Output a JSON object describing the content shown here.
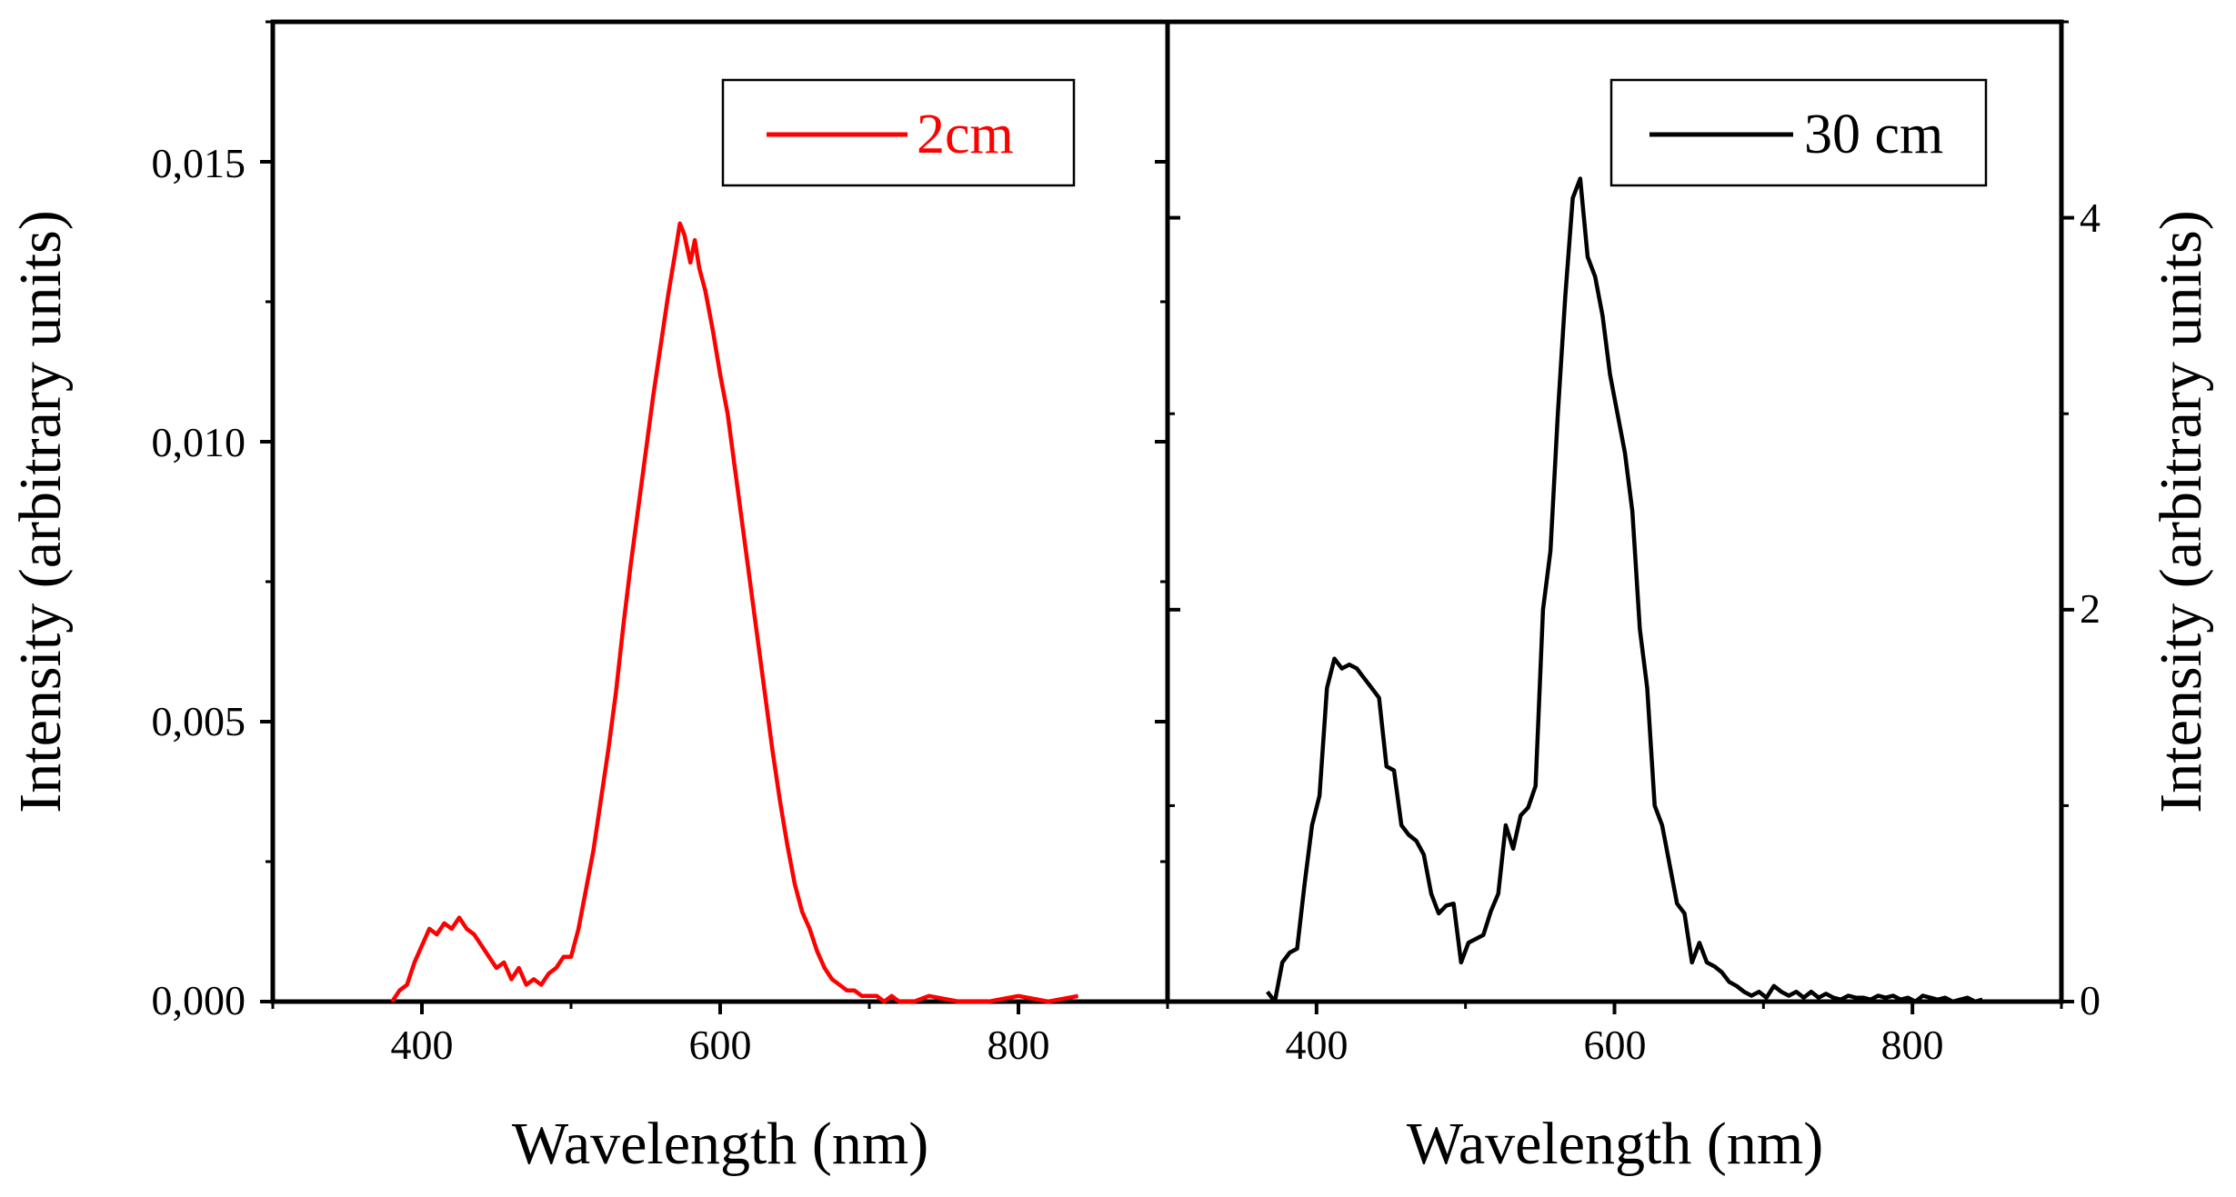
{
  "figure": {
    "left_panel": {
      "xlabel": "Wavelength (nm)",
      "ylabel": "Intensity (arbitrary units)",
      "x_tick_labels": [
        "400",
        "600",
        "800"
      ],
      "y_tick_labels": [
        "0,000",
        "0,005",
        "0,010",
        "0,015"
      ],
      "legend_label": "2cm",
      "line_color": "#ff0000"
    },
    "right_panel": {
      "xlabel": "Wavelength (nm)",
      "ylabel": "Intensity (arbitrary units)",
      "x_tick_labels": [
        "400",
        "600",
        "800"
      ],
      "y_tick_labels": [
        "0",
        "2",
        "4"
      ],
      "legend_label": "30 cm",
      "line_color": "#000000"
    }
  },
  "chart_data": [
    {
      "type": "line",
      "title": "",
      "xlabel": "Wavelength (nm)",
      "ylabel": "Intensity (arbitrary units)",
      "xlim": [
        300,
        900
      ],
      "ylim": [
        0,
        0.0175
      ],
      "xticks": [
        400,
        600,
        800
      ],
      "yticks": [
        0.0,
        0.005,
        0.01,
        0.015
      ],
      "ytick_labels": [
        "0,000",
        "0,005",
        "0,010",
        "0,015"
      ],
      "legend_position": "top-right",
      "grid": false,
      "series": [
        {
          "name": "2cm",
          "color": "#ff0000",
          "x": [
            380,
            385,
            390,
            395,
            400,
            405,
            410,
            415,
            420,
            425,
            430,
            435,
            440,
            445,
            450,
            455,
            460,
            465,
            470,
            475,
            480,
            485,
            490,
            495,
            500,
            505,
            510,
            515,
            520,
            525,
            530,
            535,
            540,
            545,
            550,
            555,
            560,
            565,
            570,
            573,
            576,
            580,
            583,
            586,
            590,
            595,
            600,
            605,
            610,
            615,
            620,
            625,
            630,
            635,
            640,
            645,
            650,
            655,
            660,
            665,
            670,
            675,
            680,
            685,
            690,
            695,
            700,
            705,
            710,
            715,
            720,
            730,
            740,
            760,
            780,
            800,
            820,
            840
          ],
          "values": [
            0.0,
            0.0002,
            0.0003,
            0.0007,
            0.001,
            0.0013,
            0.0012,
            0.0014,
            0.0013,
            0.0015,
            0.0013,
            0.0012,
            0.001,
            0.0008,
            0.0006,
            0.0007,
            0.0004,
            0.0006,
            0.0003,
            0.0004,
            0.0003,
            0.0005,
            0.0006,
            0.0008,
            0.0008,
            0.0013,
            0.002,
            0.0027,
            0.0036,
            0.0045,
            0.0055,
            0.0067,
            0.0078,
            0.0088,
            0.0098,
            0.0108,
            0.0117,
            0.0126,
            0.0134,
            0.0139,
            0.0137,
            0.0132,
            0.0136,
            0.0131,
            0.0127,
            0.012,
            0.0112,
            0.0105,
            0.0095,
            0.0085,
            0.0075,
            0.0065,
            0.0055,
            0.0045,
            0.0036,
            0.0028,
            0.0021,
            0.0016,
            0.0013,
            0.0009,
            0.0006,
            0.0004,
            0.0003,
            0.0002,
            0.0002,
            0.0001,
            0.0001,
            0.0001,
            0.0,
            0.0001,
            0.0,
            0.0,
            0.0001,
            0.0,
            0.0,
            0.0001,
            0.0,
            0.0001
          ]
        }
      ]
    },
    {
      "type": "line",
      "title": "",
      "xlabel": "Wavelength (nm)",
      "ylabel": "Intensity (arbitrary units)",
      "xlim": [
        300,
        900
      ],
      "ylim": [
        0,
        5.0
      ],
      "xticks": [
        400,
        600,
        800
      ],
      "yticks": [
        0,
        2,
        4
      ],
      "ytick_labels": [
        "0",
        "2",
        "4"
      ],
      "yaxis_position": "right",
      "legend_position": "top-right",
      "grid": false,
      "series": [
        {
          "name": "30 cm",
          "color": "#000000",
          "x": [
            367,
            372,
            377,
            382,
            387,
            392,
            397,
            402,
            407,
            412,
            417,
            422,
            427,
            432,
            437,
            442,
            447,
            452,
            457,
            462,
            467,
            472,
            477,
            482,
            487,
            492,
            497,
            502,
            507,
            512,
            517,
            522,
            527,
            532,
            537,
            542,
            547,
            552,
            557,
            562,
            567,
            572,
            577,
            582,
            587,
            592,
            597,
            602,
            607,
            612,
            617,
            622,
            627,
            632,
            637,
            642,
            647,
            652,
            657,
            662,
            667,
            672,
            677,
            682,
            687,
            692,
            697,
            702,
            707,
            712,
            717,
            722,
            727,
            732,
            737,
            742,
            747,
            752,
            757,
            762,
            767,
            772,
            777,
            782,
            787,
            792,
            797,
            802,
            807,
            812,
            817,
            822,
            827,
            832,
            837,
            842,
            847
          ],
          "values": [
            0.05,
            0.0,
            0.2,
            0.25,
            0.27,
            0.6,
            0.9,
            1.05,
            1.6,
            1.75,
            1.7,
            1.72,
            1.7,
            1.65,
            1.6,
            1.55,
            1.2,
            1.18,
            0.9,
            0.85,
            0.82,
            0.75,
            0.55,
            0.45,
            0.49,
            0.5,
            0.2,
            0.3,
            0.32,
            0.34,
            0.46,
            0.55,
            0.9,
            0.78,
            0.95,
            0.99,
            1.1,
            2.0,
            2.3,
            3.0,
            3.6,
            4.1,
            4.2,
            3.8,
            3.7,
            3.5,
            3.2,
            3.0,
            2.8,
            2.5,
            1.9,
            1.6,
            1.0,
            0.9,
            0.7,
            0.5,
            0.45,
            0.2,
            0.3,
            0.2,
            0.18,
            0.15,
            0.1,
            0.08,
            0.05,
            0.03,
            0.05,
            0.02,
            0.08,
            0.05,
            0.03,
            0.05,
            0.02,
            0.05,
            0.02,
            0.04,
            0.02,
            0.01,
            0.03,
            0.02,
            0.02,
            0.01,
            0.03,
            0.02,
            0.03,
            0.01,
            0.02,
            0.0,
            0.03,
            0.02,
            0.01,
            0.02,
            0.0,
            0.01,
            0.02,
            0.0,
            0.01
          ]
        }
      ]
    }
  ]
}
